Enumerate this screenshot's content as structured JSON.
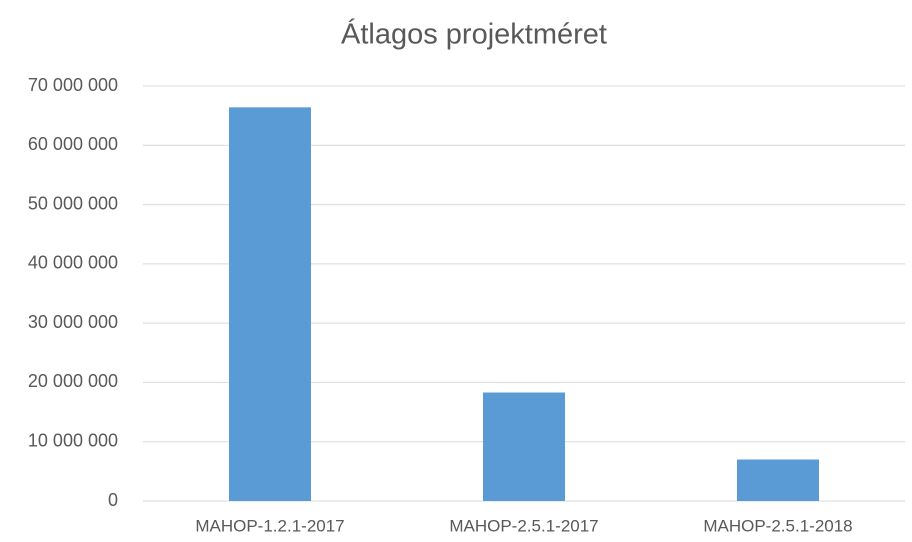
{
  "chart_data": {
    "type": "bar",
    "title": "Átlagos projektméret",
    "categories": [
      "MAHOP-1.2.1-2017",
      "MAHOP-2.5.1-2017",
      "MAHOP-2.5.1-2018"
    ],
    "values": [
      66400000,
      18300000,
      7000000
    ],
    "color": "#5b9bd5",
    "ylim": [
      0,
      70000000
    ],
    "yticks": [
      0,
      {
        "value": 10000000,
        "label": "10 000 000"
      },
      {
        "value": 20000000,
        "label": "20 000 000"
      },
      {
        "value": 30000000,
        "label": "30 000 000"
      },
      {
        "value": 40000000,
        "label": "40 000 000"
      },
      {
        "value": 50000000,
        "label": "50 000 000"
      },
      {
        "value": 60000000,
        "label": "60 000 000"
      },
      {
        "value": 70000000,
        "label": "70 000 000"
      }
    ],
    "grid": true
  }
}
